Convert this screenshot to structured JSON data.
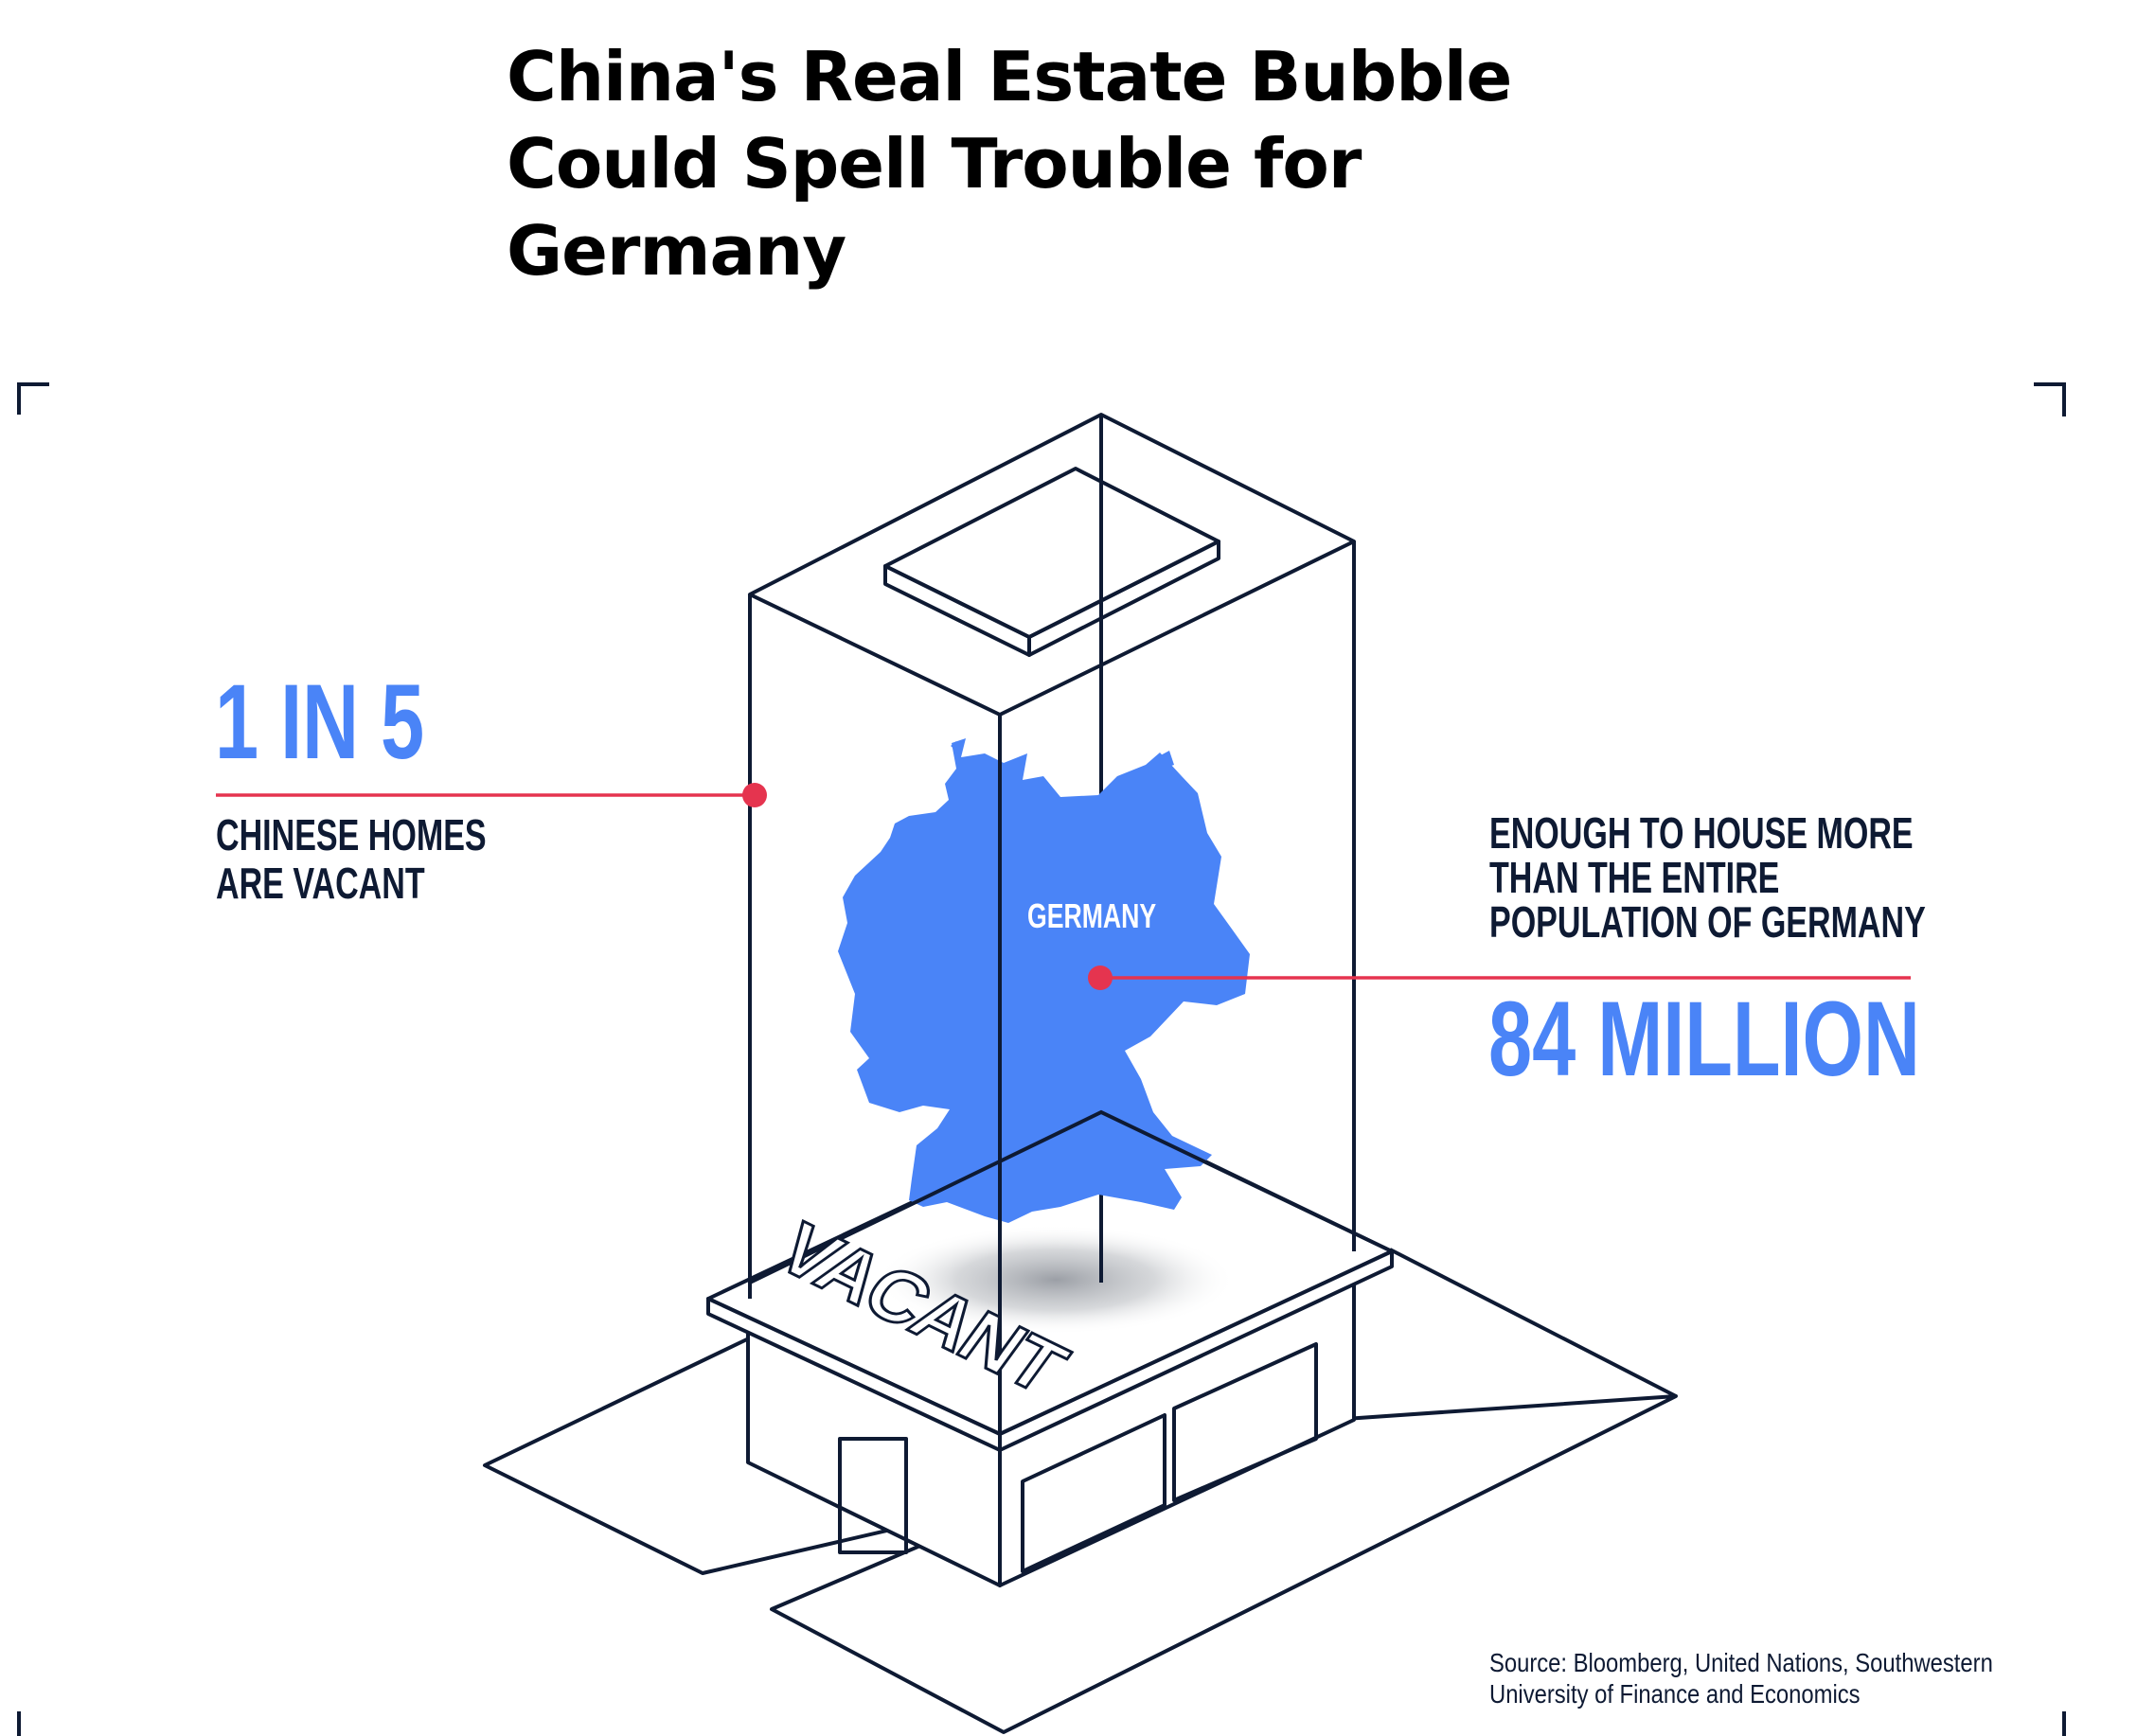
{
  "title": {
    "lines": [
      "China's Real Estate Bubble",
      "Could Spell Trouble for",
      "Germany"
    ]
  },
  "left_callout": {
    "stat": "1 IN 5",
    "description_lines": [
      "CHINESE HOMES",
      "ARE VACANT"
    ]
  },
  "right_callout": {
    "description_lines": [
      "ENOUGH TO HOUSE MORE",
      "THAN THE ENTIRE",
      "POPULATION OF GERMANY"
    ],
    "stat": "84 MILLION"
  },
  "map_label": "GERMANY",
  "building_sign": "VACANT",
  "source": {
    "lines": [
      "Source: Bloomberg, United Nations, Southwestern",
      "University of Finance and Economics"
    ]
  },
  "colors": {
    "accent_blue": "#4a84f7",
    "line_navy": "#0e1a33",
    "marker_red": "#e5344f"
  },
  "icons": {
    "map": "germany-map-silhouette",
    "building": "isometric-building-outline"
  }
}
